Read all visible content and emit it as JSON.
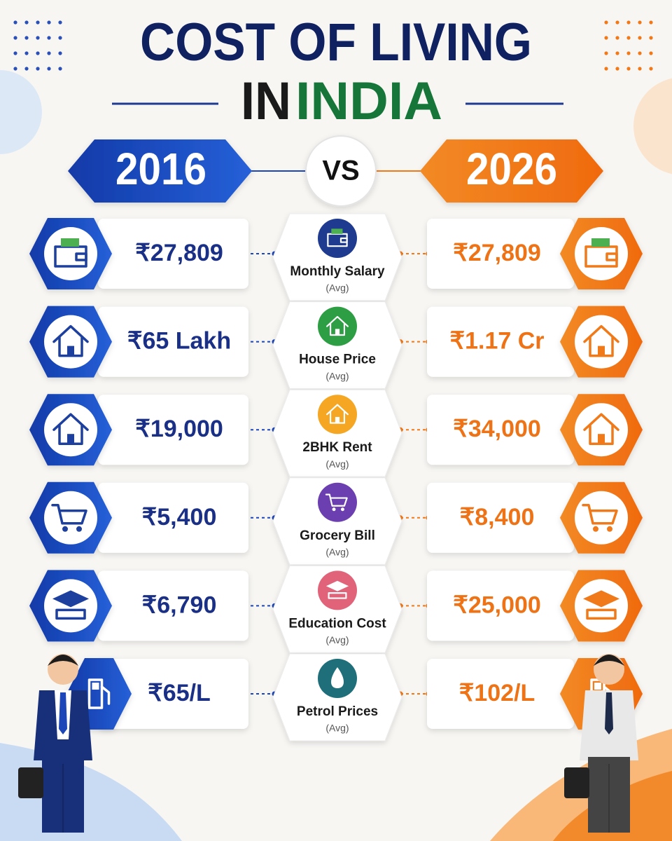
{
  "title": {
    "line1": "COST OF LIVING",
    "line2_part1": "IN",
    "line2_part2": "INDIA"
  },
  "comparison": {
    "left_year": "2016",
    "vs": "VS",
    "right_year": "2026"
  },
  "rows": [
    {
      "label": "Monthly Salary",
      "note": "(Avg)",
      "left": "₹27,809",
      "right": "₹27,809"
    },
    {
      "label": "House Price",
      "note": "(Avg)",
      "left": "₹65 Lakh",
      "right": "₹1.17 Cr"
    },
    {
      "label": "2BHK Rent",
      "note": "(Avg)",
      "left": "₹19,000",
      "right": "₹34,000"
    },
    {
      "label": "Grocery Bill",
      "note": "(Avg)",
      "left": "₹5,400",
      "right": "₹8,400"
    },
    {
      "label": "Education Cost",
      "note": "(Avg)",
      "left": "₹6,790",
      "right": "₹25,000"
    },
    {
      "label": "Petrol Prices",
      "note": "(Avg)",
      "left": "₹65/L",
      "right": "₹102/L"
    }
  ]
}
